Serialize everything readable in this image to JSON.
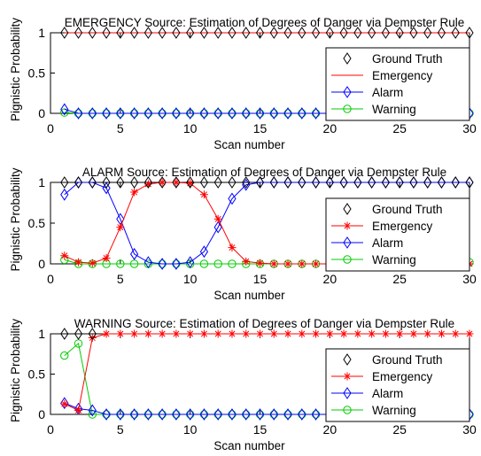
{
  "chart_data": [
    {
      "type": "line",
      "title": "EMERGENCY Source: Estimation of Degrees of Danger via Dempster Rule",
      "xlabel": "Scan number",
      "ylabel": "Pignistic Probability",
      "xlim": [
        0,
        30
      ],
      "ylim": [
        0,
        1
      ],
      "xticks": [
        "0",
        "5",
        "10",
        "15",
        "20",
        "25",
        "30"
      ],
      "yticks": [
        "0",
        "0.5",
        "1"
      ],
      "legend_position": "bottom-right",
      "x": [
        1,
        2,
        3,
        4,
        5,
        6,
        7,
        8,
        9,
        10,
        11,
        12,
        13,
        14,
        15,
        16,
        17,
        18,
        19,
        20,
        21,
        22,
        23,
        24,
        25,
        26,
        27,
        28,
        29,
        30
      ],
      "series": [
        {
          "name": "Ground Truth",
          "color": "#000000",
          "line": false,
          "marker": "diamond",
          "values": [
            1,
            1,
            1,
            1,
            1,
            1,
            1,
            1,
            1,
            1,
            1,
            1,
            1,
            1,
            1,
            1,
            1,
            1,
            1,
            1,
            1,
            1,
            1,
            1,
            1,
            1,
            1,
            1,
            1,
            1
          ]
        },
        {
          "name": "Emergency",
          "color": "#ff0000",
          "line": true,
          "marker": "none",
          "values": [
            1,
            1,
            1,
            1,
            1,
            1,
            1,
            1,
            1,
            1,
            1,
            1,
            1,
            1,
            1,
            1,
            1,
            1,
            1,
            1,
            1,
            1,
            1,
            1,
            1,
            1,
            1,
            1,
            1,
            1
          ]
        },
        {
          "name": "Alarm",
          "color": "#0000ff",
          "line": true,
          "marker": "diamond",
          "values": [
            0.05,
            0,
            0,
            0,
            0,
            0,
            0,
            0,
            0,
            0,
            0,
            0,
            0,
            0,
            0,
            0,
            0,
            0,
            0,
            0,
            0,
            0,
            0,
            0,
            0,
            0,
            0,
            0,
            0,
            0
          ]
        },
        {
          "name": "Warning",
          "color": "#00cc00",
          "line": true,
          "marker": "circle",
          "values": [
            0.01,
            0,
            0,
            0,
            0,
            0,
            0,
            0,
            0,
            0,
            0,
            0,
            0,
            0,
            0,
            0,
            0,
            0,
            0,
            0,
            0,
            0,
            0,
            0,
            0,
            0,
            0,
            0,
            0,
            0
          ]
        }
      ]
    },
    {
      "type": "line",
      "title": "ALARM Source: Estimation of Degrees of Danger via Dempster Rule",
      "xlabel": "Scan number",
      "ylabel": "Pignistic Probability",
      "xlim": [
        0,
        30
      ],
      "ylim": [
        0,
        1
      ],
      "xticks": [
        "0",
        "5",
        "10",
        "15",
        "20",
        "25",
        "30"
      ],
      "yticks": [
        "0",
        "0.5",
        "1"
      ],
      "legend_position": "bottom-right",
      "x": [
        1,
        2,
        3,
        4,
        5,
        6,
        7,
        8,
        9,
        10,
        11,
        12,
        13,
        14,
        15,
        16,
        17,
        18,
        19,
        20,
        21,
        22,
        23,
        24,
        25,
        26,
        27,
        28,
        29,
        30
      ],
      "series": [
        {
          "name": "Ground Truth",
          "color": "#000000",
          "line": false,
          "marker": "diamond",
          "values": [
            1,
            1,
            1,
            1,
            1,
            1,
            1,
            1,
            1,
            1,
            1,
            1,
            1,
            1,
            1,
            1,
            1,
            1,
            1,
            1,
            1,
            1,
            1,
            1,
            1,
            1,
            1,
            1,
            1,
            1
          ]
        },
        {
          "name": "Emergency",
          "color": "#ff0000",
          "line": true,
          "marker": "star",
          "values": [
            0.1,
            0.02,
            0.01,
            0.07,
            0.45,
            0.88,
            0.98,
            1,
            1,
            0.99,
            0.85,
            0.55,
            0.2,
            0.03,
            0.01,
            0,
            0,
            0,
            0,
            0,
            0,
            0,
            0,
            0,
            0,
            0,
            0,
            0,
            0,
            0
          ]
        },
        {
          "name": "Alarm",
          "color": "#0000ff",
          "line": true,
          "marker": "diamond",
          "values": [
            0.85,
            1,
            1,
            0.93,
            0.55,
            0.12,
            0.02,
            0,
            0,
            0.02,
            0.15,
            0.45,
            0.8,
            0.97,
            1,
            1,
            1,
            1,
            1,
            1,
            1,
            1,
            1,
            1,
            1,
            1,
            1,
            1,
            1,
            1
          ]
        },
        {
          "name": "Warning",
          "color": "#00cc00",
          "line": true,
          "marker": "circle",
          "values": [
            0.05,
            0,
            0,
            0,
            0,
            0,
            0,
            0,
            0,
            0,
            0,
            0,
            0,
            0,
            0,
            0,
            0,
            0,
            0,
            0,
            0,
            0,
            0,
            0,
            0,
            0,
            0,
            0,
            0,
            0.02
          ]
        }
      ]
    },
    {
      "type": "line",
      "title": "WARNING Source: Estimation of Degrees of Danger via Dempster Rule",
      "xlabel": "Scan number",
      "ylabel": "Pignistic Probability",
      "xlim": [
        0,
        30
      ],
      "ylim": [
        0,
        1
      ],
      "xticks": [
        "0",
        "5",
        "10",
        "15",
        "20",
        "25",
        "30"
      ],
      "yticks": [
        "0",
        "0.5",
        "1"
      ],
      "legend_position": "bottom-right",
      "x": [
        1,
        2,
        3,
        4,
        5,
        6,
        7,
        8,
        9,
        10,
        11,
        12,
        13,
        14,
        15,
        16,
        17,
        18,
        19,
        20,
        21,
        22,
        23,
        24,
        25,
        26,
        27,
        28,
        29,
        30
      ],
      "series": [
        {
          "name": "Ground Truth",
          "color": "#000000",
          "line": false,
          "marker": "diamond",
          "values": [
            1,
            1,
            1,
            null,
            null,
            null,
            null,
            null,
            null,
            null,
            null,
            null,
            null,
            null,
            null,
            null,
            null,
            null,
            null,
            null,
            null,
            null,
            null,
            null,
            null,
            null,
            null,
            null,
            null,
            null
          ]
        },
        {
          "name": "Emergency",
          "color": "#ff0000",
          "line": true,
          "marker": "star",
          "values": [
            0.13,
            0.05,
            0.95,
            1,
            1,
            1,
            1,
            1,
            1,
            1,
            1,
            1,
            1,
            1,
            1,
            1,
            1,
            1,
            1,
            1,
            1,
            1,
            1,
            1,
            1,
            1,
            1,
            1,
            1,
            1
          ]
        },
        {
          "name": "Alarm",
          "color": "#0000ff",
          "line": true,
          "marker": "diamond",
          "values": [
            0.14,
            0.07,
            0.05,
            0,
            0,
            0,
            0,
            0,
            0,
            0,
            0,
            0,
            0,
            0,
            0,
            0,
            0,
            0,
            0,
            0,
            0,
            0,
            0,
            0,
            0,
            0,
            0,
            0,
            0,
            0
          ]
        },
        {
          "name": "Warning",
          "color": "#00cc00",
          "line": true,
          "marker": "circle",
          "values": [
            0.73,
            0.88,
            0,
            0,
            0,
            0,
            0,
            0,
            0,
            0,
            0,
            0,
            0,
            0,
            0,
            0,
            0,
            0,
            0,
            0,
            0,
            0,
            0,
            0,
            0,
            0,
            0,
            0,
            0,
            0
          ]
        }
      ]
    }
  ]
}
